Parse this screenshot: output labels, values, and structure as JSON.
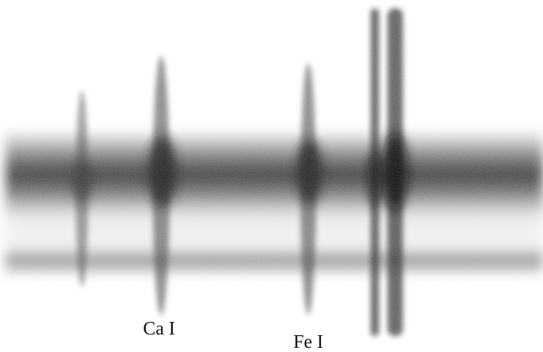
{
  "annotations": [
    "Ca I",
    "Fe I"
  ]
}
